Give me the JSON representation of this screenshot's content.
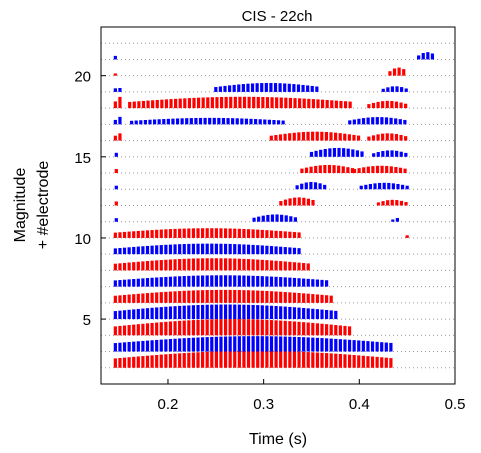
{
  "chart_data": {
    "type": "heatmap",
    "title": "CIS - 22ch",
    "xlabel": "Time (s)",
    "ylabel": [
      "Magnitude",
      "+ #electrode"
    ],
    "xlim": [
      0.13,
      0.5
    ],
    "ylim": [
      1,
      23
    ],
    "xticks": [
      0.2,
      0.3,
      0.4,
      0.5
    ],
    "xtick_labels": [
      "0.2",
      "0.3",
      "0.4",
      "0.5"
    ],
    "yticks": [
      5,
      10,
      15,
      20
    ],
    "ytick_labels": [
      "5",
      "10",
      "15",
      "20"
    ],
    "baseline_grid": "dotted",
    "colors": {
      "odd_channel": "#ff0000",
      "even_channel": "#0000ff",
      "grid": "#999999"
    },
    "channels": [
      {
        "electrode": 1,
        "segments": [
          [
            0.145,
            0.437,
            1.05
          ]
        ]
      },
      {
        "electrode": 2,
        "segments": [
          [
            0.145,
            0.435,
            0.95
          ]
        ]
      },
      {
        "electrode": 3,
        "segments": [
          [
            0.145,
            0.39,
            1.0
          ]
        ]
      },
      {
        "electrode": 4,
        "segments": [
          [
            0.145,
            0.378,
            0.9
          ]
        ]
      },
      {
        "electrode": 5,
        "segments": [
          [
            0.145,
            0.372,
            0.8
          ]
        ]
      },
      {
        "electrode": 6,
        "segments": [
          [
            0.145,
            0.368,
            0.7
          ]
        ]
      },
      {
        "electrode": 7,
        "segments": [
          [
            0.145,
            0.35,
            0.75
          ]
        ]
      },
      {
        "electrode": 8,
        "segments": [
          [
            0.145,
            0.34,
            0.65
          ]
        ]
      },
      {
        "electrode": 9,
        "segments": [
          [
            0.145,
            0.34,
            0.6
          ],
          [
            0.45,
            0.452,
            0.3
          ]
        ]
      },
      {
        "electrode": 10,
        "segments": [
          [
            0.146,
            0.15,
            0.4
          ],
          [
            0.29,
            0.335,
            0.45
          ],
          [
            0.435,
            0.442,
            0.25
          ]
        ]
      },
      {
        "electrode": 11,
        "segments": [
          [
            0.146,
            0.15,
            0.45
          ],
          [
            0.318,
            0.355,
            0.5
          ],
          [
            0.42,
            0.45,
            0.35
          ]
        ]
      },
      {
        "electrode": 12,
        "segments": [
          [
            0.146,
            0.15,
            0.4
          ],
          [
            0.335,
            0.365,
            0.45
          ],
          [
            0.402,
            0.45,
            0.4
          ]
        ]
      },
      {
        "electrode": 13,
        "segments": [
          [
            0.146,
            0.15,
            0.45
          ],
          [
            0.34,
            0.395,
            0.5
          ],
          [
            0.395,
            0.45,
            0.45
          ]
        ]
      },
      {
        "electrode": 14,
        "segments": [
          [
            0.146,
            0.15,
            0.45
          ],
          [
            0.35,
            0.405,
            0.55
          ],
          [
            0.415,
            0.45,
            0.4
          ]
        ]
      },
      {
        "electrode": 15,
        "segments": [
          [
            0.145,
            0.151,
            0.55
          ],
          [
            0.308,
            0.4,
            0.55
          ],
          [
            0.41,
            0.45,
            0.45
          ]
        ]
      },
      {
        "electrode": 16,
        "segments": [
          [
            0.145,
            0.152,
            0.5
          ],
          [
            0.162,
            0.325,
            0.4
          ],
          [
            0.39,
            0.45,
            0.45
          ]
        ]
      },
      {
        "electrode": 17,
        "segments": [
          [
            0.145,
            0.152,
            0.75
          ],
          [
            0.16,
            0.395,
            0.7
          ],
          [
            0.41,
            0.45,
            0.45
          ]
        ]
      },
      {
        "electrode": 18,
        "segments": [
          [
            0.145,
            0.15,
            0.4
          ],
          [
            0.25,
            0.36,
            0.55
          ],
          [
            0.425,
            0.45,
            0.35
          ]
        ]
      },
      {
        "electrode": 19,
        "segments": [
          [
            0.145,
            0.149,
            0.25
          ],
          [
            0.432,
            0.45,
            0.5
          ]
        ]
      },
      {
        "electrode": 20,
        "segments": [
          [
            0.145,
            0.149,
            0.4
          ],
          [
            0.462,
            0.48,
            0.45
          ]
        ]
      },
      {
        "electrode": 21,
        "segments": []
      },
      {
        "electrode": 22,
        "segments": []
      }
    ]
  }
}
